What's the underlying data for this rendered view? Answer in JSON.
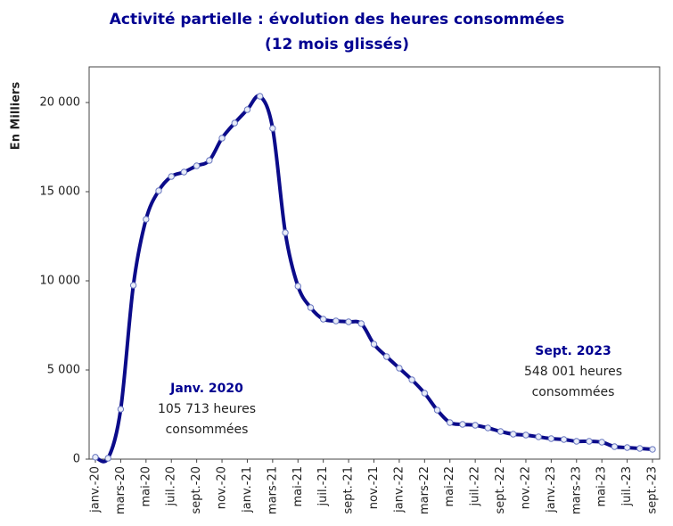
{
  "chart_data": {
    "type": "line",
    "title": "Activité partielle : évolution des heures consommées",
    "subtitle": "(12 mois glissés)",
    "y_label": "En Milliers",
    "categories": [
      "janv.-20",
      null,
      "mars-20",
      null,
      "mai-20",
      null,
      "juil.-20",
      null,
      "sept.-20",
      null,
      "nov.-20",
      null,
      "janv.-21",
      null,
      "mars-21",
      null,
      "mai-21",
      null,
      "juil.-21",
      null,
      "sept.-21",
      null,
      "nov.-21",
      null,
      "janv.-22",
      null,
      "mars-22",
      null,
      "mai-22",
      null,
      "juil.-22",
      null,
      "sept.-22",
      null,
      "nov.-22",
      null,
      "janv.-23",
      null,
      "mars-23",
      null,
      "mai-23",
      null,
      "juil.-23",
      null,
      "sept.-23"
    ],
    "series": [
      {
        "name": "Heures consommées",
        "color": "#0b0b8a",
        "values": [
          106,
          50,
          2800,
          9750,
          13450,
          15050,
          15850,
          16100,
          16450,
          16750,
          18000,
          18850,
          19600,
          20350,
          18550,
          12700,
          9700,
          8500,
          7850,
          7750,
          7700,
          7600,
          6450,
          5750,
          5100,
          4450,
          3700,
          2750,
          2050,
          1950,
          1900,
          1750,
          1550,
          1400,
          1350,
          1250,
          1150,
          1100,
          1000,
          1000,
          950,
          700,
          650,
          600,
          548
        ]
      }
    ],
    "ylim": [
      0,
      22000
    ],
    "yticks": [
      0,
      {
        "value": 5000,
        "label": "5 000"
      },
      {
        "value": 10000,
        "label": "10 000"
      },
      {
        "value": 15000,
        "label": "15 000"
      },
      {
        "value": 20000,
        "label": "20 000"
      }
    ],
    "annotations": [
      [
        "Janv. 2020",
        "105 713 heures",
        "consommées"
      ],
      [
        "Sept. 2023",
        "548 001 heures",
        "consommées"
      ]
    ]
  }
}
